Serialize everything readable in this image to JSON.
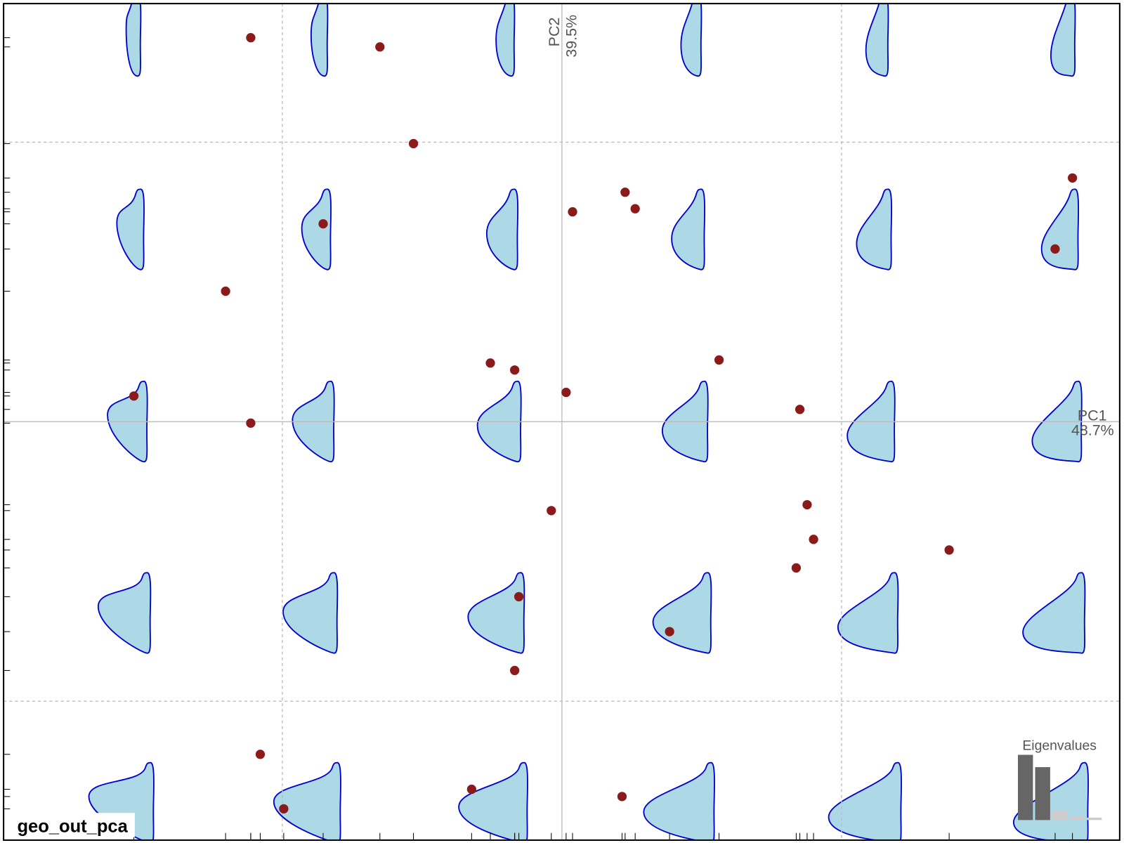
{
  "chart_data": {
    "type": "scatter",
    "title": "geo_out_pca",
    "axis_labels": {
      "x": [
        "PC1",
        "48.7%"
      ],
      "y": [
        "PC2",
        "39.5%"
      ]
    },
    "x": [
      -1.113,
      -0.651,
      -0.531,
      0.226,
      0.262,
      0.038,
      -0.854,
      1.826,
      1.764,
      -1.203,
      -0.256,
      -0.169,
      0.015,
      0.562,
      0.851,
      -1.531,
      -1.113,
      -0.038,
      0.877,
      0.9,
      0.838,
      1.385,
      -0.154,
      0.385,
      -0.169,
      -1.079,
      -0.995,
      -0.323,
      0.215
    ],
    "values": [
      1.374,
      1.341,
      0.995,
      0.821,
      0.762,
      0.751,
      0.708,
      0.872,
      0.618,
      0.467,
      0.21,
      0.185,
      0.105,
      0.221,
      0.044,
      0.092,
      -0.005,
      -0.318,
      -0.297,
      -0.421,
      -0.523,
      -0.459,
      -0.626,
      -0.751,
      -0.89,
      -1.19,
      -1.385,
      -1.315,
      -1.341
    ],
    "color": "#8b1a1a",
    "xlim": [
      -1.997,
      1.995
    ],
    "ylim": [
      -1.497,
      1.496
    ],
    "xticks": [
      -1,
      0,
      1
    ],
    "yticks": [
      -1,
      0,
      1
    ],
    "grid": true,
    "eigenvalues": {
      "title": "Eigenvalues",
      "values": [
        48.7,
        39.5,
        7.4,
        2.6,
        1.8
      ],
      "colors": [
        "#666666",
        "#666666",
        "#cccccc",
        "#cccccc",
        "#cccccc"
      ]
    }
  }
}
